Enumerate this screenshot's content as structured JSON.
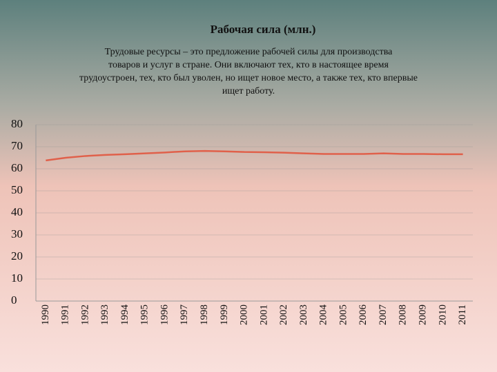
{
  "chart_data": {
    "type": "line",
    "title": "Рабочая сила (млн.)",
    "subtitle": [
      "Трудовые ресурсы – это предложение рабочей силы для производства",
      "товаров и услуг в стране. Они включают тех, кто в настоящее время",
      "трудоустроен, тех, кто был уволен, но ищет новое место, а также тех, кто впервые",
      "ищет работу."
    ],
    "categories": [
      "1990",
      "1991",
      "1992",
      "1993",
      "1994",
      "1995",
      "1996",
      "1997",
      "1998",
      "1999",
      "2000",
      "2001",
      "2002",
      "2003",
      "2004",
      "2005",
      "2006",
      "2007",
      "2008",
      "2009",
      "2010",
      "2011"
    ],
    "series": [
      {
        "color": "#e0604a",
        "values": [
          63.8,
          65,
          65.8,
          66.3,
          66.6,
          67,
          67.4,
          67.9,
          68.1,
          67.9,
          67.6,
          67.5,
          67.3,
          67,
          66.7,
          66.7,
          66.7,
          67,
          66.7,
          66.7,
          66.6,
          66.6
        ]
      }
    ],
    "ylim": [
      0,
      80
    ],
    "yticks": [
      0,
      10,
      20,
      30,
      40,
      50,
      60,
      70,
      80
    ],
    "grid": true
  }
}
